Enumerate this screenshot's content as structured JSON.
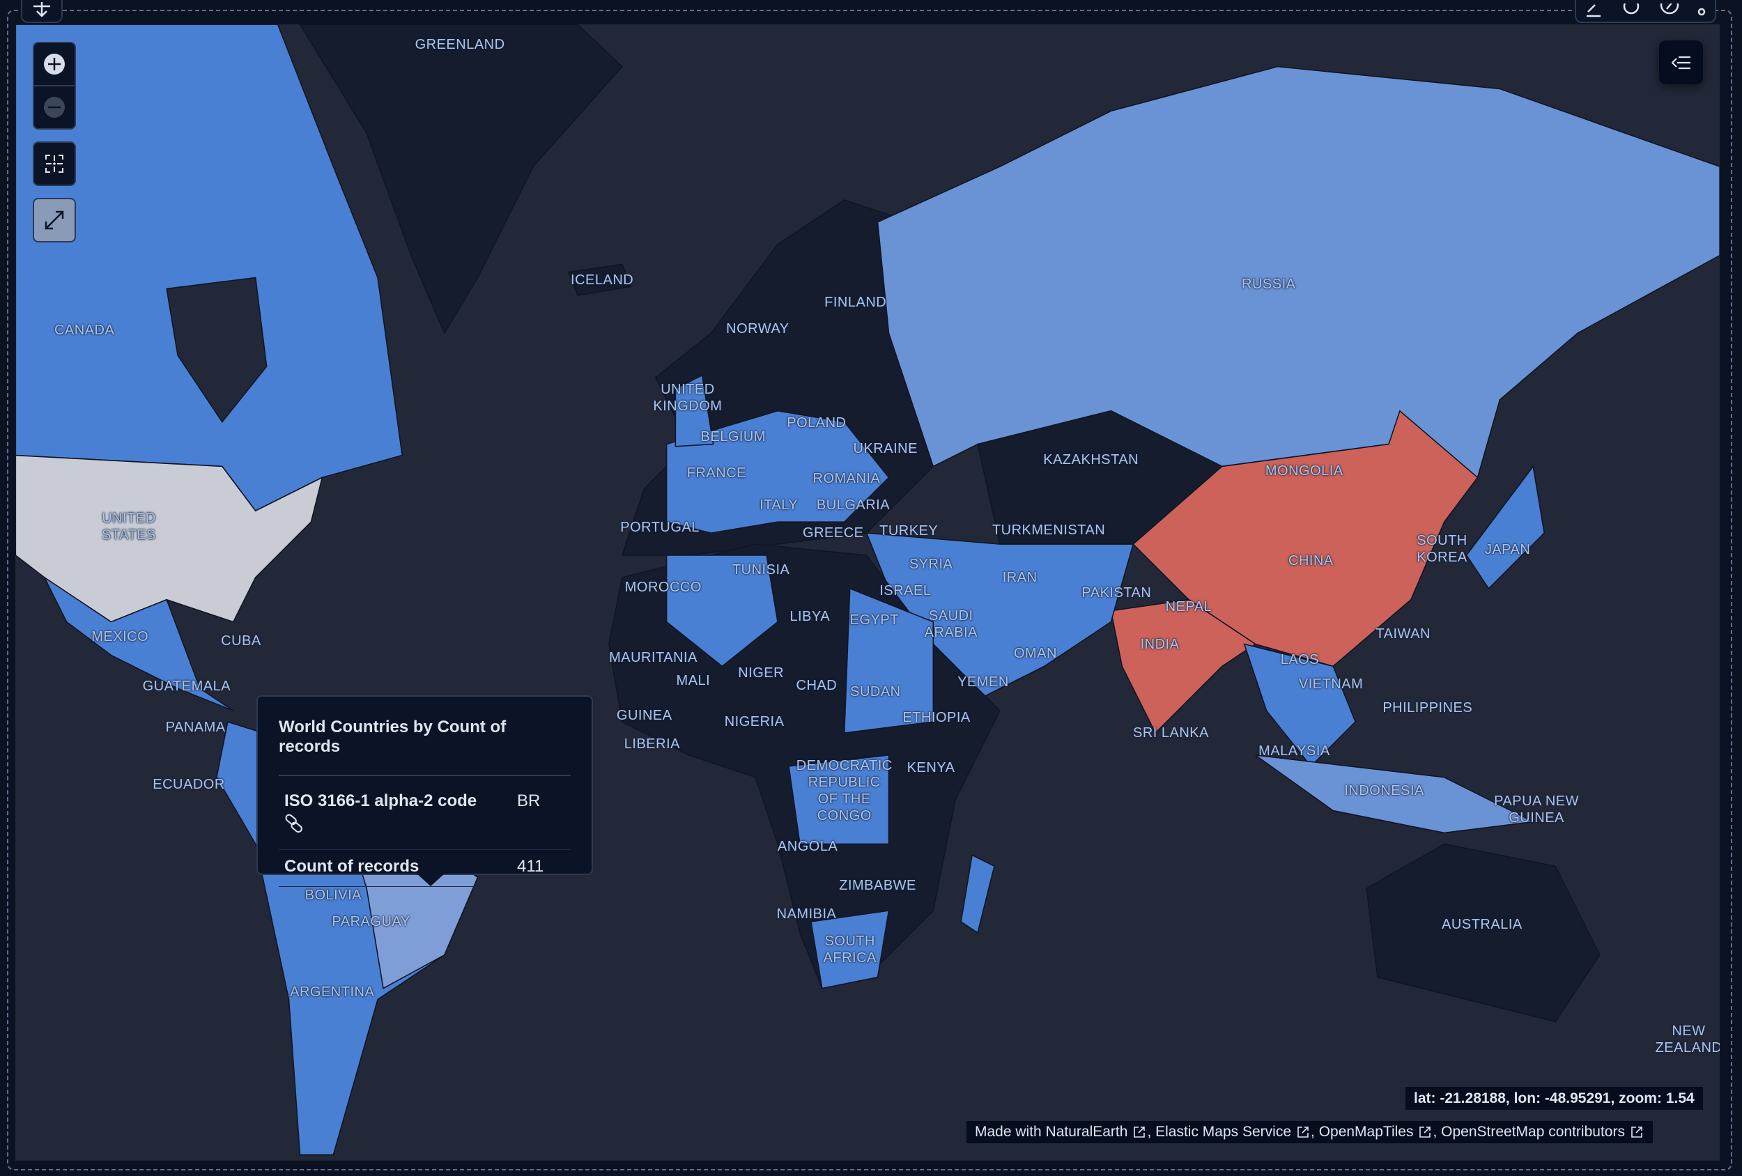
{
  "map": {
    "colors": {
      "ocean": "#232838",
      "land_no_data": "#141c2e",
      "low": "#4a80d4",
      "mid": "#6a93d6",
      "pale": "#c9ccd4",
      "high": "#cc6259",
      "brazil": "#7f9ed8"
    },
    "country_labels": [
      "GREENLAND",
      "ICELAND",
      "CANADA",
      "FINLAND",
      "NORWAY",
      "RUSSIA",
      "UNITED\nKINGDOM",
      "POLAND",
      "BELGIUM",
      "UKRAINE",
      "KAZAKHSTAN",
      "MONGOLIA",
      "FRANCE",
      "ROMANIA",
      "UNITED\nSTATES",
      "ITALY",
      "BULGARIA",
      "PORTUGAL",
      "GREECE",
      "TURKEY",
      "TURKMENISTAN",
      "SOUTH\nKOREA",
      "JAPAN",
      "CHINA",
      "TUNISIA",
      "SYRIA",
      "IRAN",
      "MOROCCO",
      "ISRAEL",
      "PAKISTAN",
      "LIBYA",
      "EGYPT",
      "SAUDI\nARABIA",
      "NEPAL",
      "MEXICO",
      "CUBA",
      "INDIA",
      "TAIWAN",
      "OMAN",
      "MAURITANIA",
      "LAOS",
      "NIGER",
      "MALI",
      "CHAD",
      "GUATEMALA",
      "VIETNAM",
      "SUDAN",
      "YEMEN",
      "PHILIPPINES",
      "GUINEA",
      "NIGERIA",
      "ETHIOPIA",
      "PANAMA",
      "SRI LANKA",
      "LIBERIA",
      "KENYA",
      "DEMOCRATIC\nREPUBLIC\nOF THE\nCONGO",
      "MALAYSIA",
      "INDONESIA",
      "ECUADOR",
      "PAPUA NEW\nGUINEA",
      "ANGOLA",
      "BOLIVIA",
      "ZIMBABWE",
      "PARAGUAY",
      "NAMIBIA",
      "AUSTRALIA",
      "SOUTH\nAFRICA",
      "ARGENTINA",
      "NEW\nZEALAND"
    ]
  },
  "controls": {
    "zoom_in": "plus-circle-icon",
    "zoom_out": "minus-circle-icon",
    "fit_bounds": "fit-to-bounds-icon",
    "fullscreen": "expand-icon",
    "legend_toggle": "legend-collapse-icon"
  },
  "toolbar_icons": [
    "move-icon",
    "edit-icon",
    "gear-icon",
    "compass-icon",
    "more-vertical-icon"
  ],
  "tooltip": {
    "title": "World Countries by Count of records",
    "rows": [
      {
        "label": "ISO 3166-1 alpha-2 code",
        "value": "BR",
        "icon": "link-icon"
      },
      {
        "label": "Count of records",
        "value": "411"
      }
    ]
  },
  "readout": "lat: -21.28188, lon: -48.95291, zoom: 1.54",
  "attribution": [
    {
      "label": "Made with NaturalEarth"
    },
    {
      "label": "Elastic Maps Service"
    },
    {
      "label": "OpenMapTiles"
    },
    {
      "label": "OpenStreetMap contributors"
    }
  ]
}
